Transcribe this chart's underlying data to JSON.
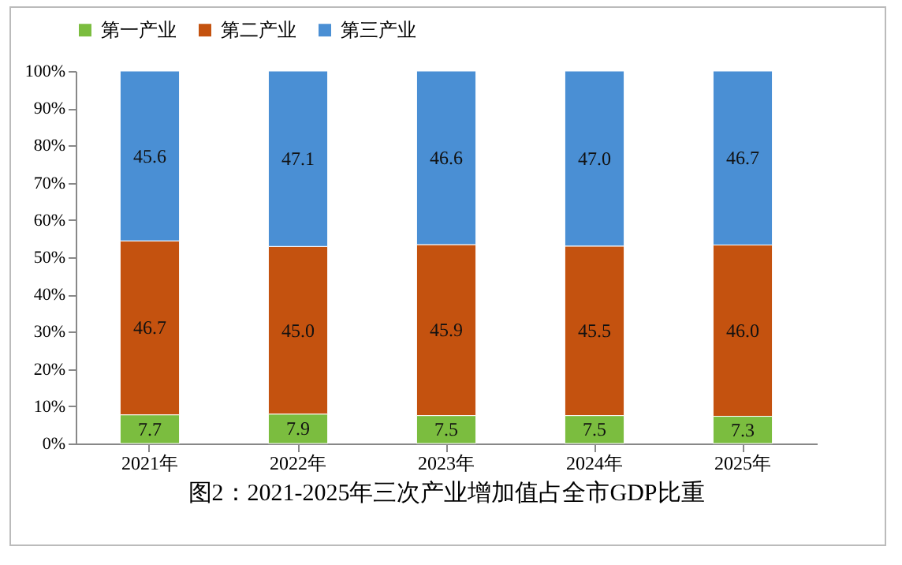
{
  "chart_data": {
    "type": "bar",
    "stacked": true,
    "title": "图2：2021-2025年三次产业增加值占全市GDP比重",
    "categories": [
      "2021年",
      "2022年",
      "2023年",
      "2024年",
      "2025年"
    ],
    "series": [
      {
        "name": "第一产业",
        "color": "#7bbd3f",
        "values": [
          7.7,
          7.9,
          7.5,
          7.5,
          7.3
        ],
        "value_labels": [
          "7.7",
          "7.9",
          "7.5",
          "7.5",
          "7.3"
        ]
      },
      {
        "name": "第二产业",
        "color": "#c4520f",
        "values": [
          46.7,
          45.0,
          45.9,
          45.5,
          46.0
        ],
        "value_labels": [
          "46.7",
          "45.0",
          "45.9",
          "45.5",
          "46.0"
        ]
      },
      {
        "name": "第三产业",
        "color": "#4a8fd4",
        "values": [
          45.6,
          47.1,
          46.6,
          47.0,
          46.7
        ],
        "value_labels": [
          "45.6",
          "47.1",
          "46.6",
          "47.0",
          "46.7"
        ]
      }
    ],
    "ylim": [
      0,
      100
    ],
    "yticks": [
      {
        "value": 0,
        "label": "0%"
      },
      {
        "value": 10,
        "label": "10%"
      },
      {
        "value": 20,
        "label": "20%"
      },
      {
        "value": 30,
        "label": "30%"
      },
      {
        "value": 40,
        "label": "40%"
      },
      {
        "value": 50,
        "label": "50%"
      },
      {
        "value": 60,
        "label": "60%"
      },
      {
        "value": 70,
        "label": "70%"
      },
      {
        "value": 80,
        "label": "80%"
      },
      {
        "value": 90,
        "label": "90%"
      },
      {
        "value": 100,
        "label": "100%"
      }
    ],
    "legend": "top",
    "grid": false
  }
}
